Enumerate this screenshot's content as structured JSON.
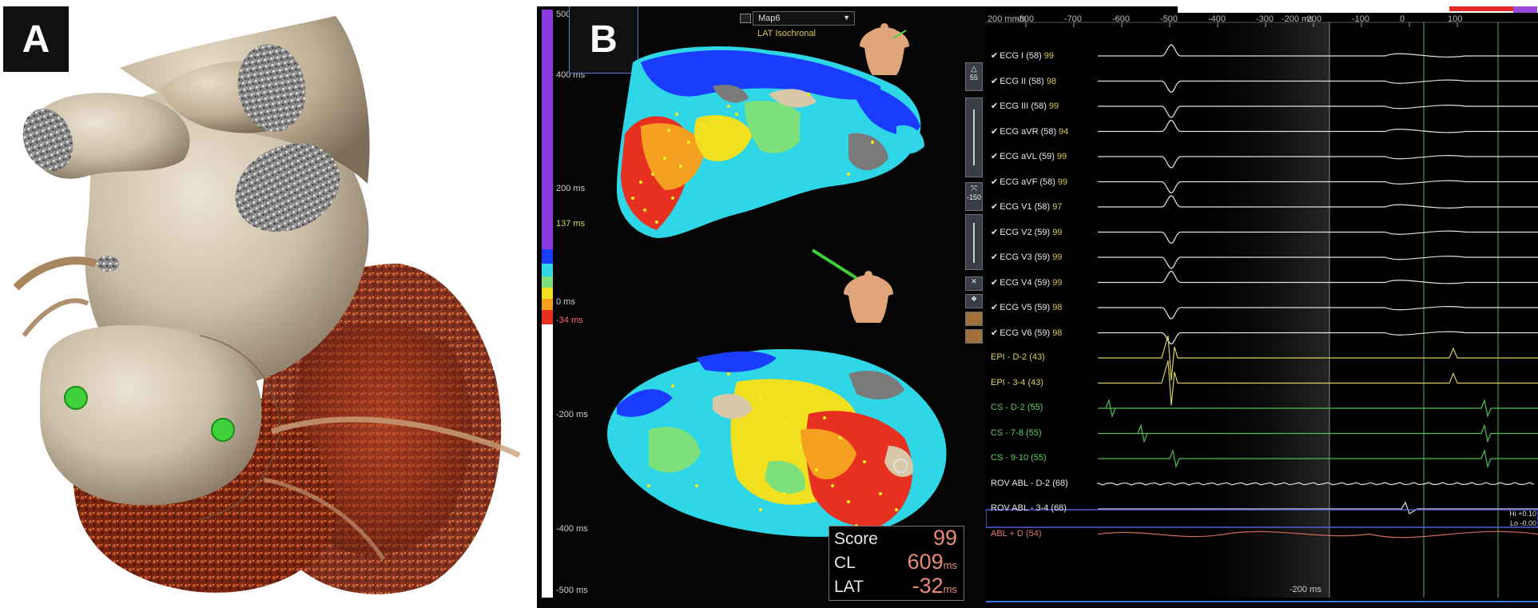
{
  "panels": {
    "a": {
      "label": "A"
    },
    "b": {
      "label": "B"
    }
  },
  "colorbar": {
    "ticks": [
      {
        "label": "500",
        "cls": "",
        "top": 4
      },
      {
        "label": "400 ms",
        "cls": "",
        "top": 80
      },
      {
        "label": "200 ms",
        "cls": "",
        "top": 222
      },
      {
        "label": "137 ms",
        "cls": "y",
        "top": 266
      },
      {
        "label": "0 ms",
        "cls": "",
        "top": 364
      },
      {
        "label": "-34 ms",
        "cls": "r",
        "top": 387
      },
      {
        "label": "-200 ms",
        "cls": "",
        "top": 505
      },
      {
        "label": "-400 ms",
        "cls": "",
        "top": 648
      },
      {
        "label": "-500 ms",
        "cls": "",
        "top": 725
      }
    ],
    "colors": [
      "#8a3adc",
      "#1a3cff",
      "#2ed6e6",
      "#7ee07a",
      "#f0e020",
      "#f5a020",
      "#e83020"
    ]
  },
  "map": {
    "selector_value": "Map6",
    "subtitle": "LAT Isochronal"
  },
  "score_box": {
    "score_label": "Score",
    "score_value": "99",
    "cl_label": "CL",
    "cl_value": "609",
    "cl_unit": "ms",
    "lat_label": "LAT",
    "lat_value": "-32",
    "lat_unit": "ms"
  },
  "toolbar": {
    "zoom_value": "55",
    "rotate_value": "-150"
  },
  "signals": {
    "scale_label": "200 mm/s",
    "time_axis": [
      "-800",
      "-700",
      "-600",
      "-500",
      "-400",
      "-300",
      "-200",
      "-100",
      "0",
      "100"
    ],
    "time_axis_top_right": "-200 ms",
    "bottom_label": "-200 ms",
    "hi_label": "Hi +0.10",
    "lo_label": "Lo -0.00",
    "leads": [
      {
        "name": "ECG I (58)",
        "score": "99",
        "color": "w",
        "check": "✔"
      },
      {
        "name": "ECG II (58)",
        "score": "98",
        "color": "w",
        "check": "✔"
      },
      {
        "name": "ECG III (58)",
        "score": "99",
        "color": "w",
        "check": "✔"
      },
      {
        "name": "ECG aVR (58)",
        "score": "94",
        "color": "w",
        "check": "✔"
      },
      {
        "name": "ECG aVL (59)",
        "score": "99",
        "color": "w",
        "check": "✔"
      },
      {
        "name": "ECG aVF (58)",
        "score": "99",
        "color": "w",
        "check": "✔"
      },
      {
        "name": "ECG V1 (58)",
        "score": "97",
        "color": "w",
        "check": "✔"
      },
      {
        "name": "ECG V2 (59)",
        "score": "99",
        "color": "w",
        "check": "✔"
      },
      {
        "name": "ECG V3 (59)",
        "score": "99",
        "color": "w",
        "check": "✔"
      },
      {
        "name": "ECG V4 (59)",
        "score": "99",
        "color": "w",
        "check": "✔"
      },
      {
        "name": "ECG V5 (59)",
        "score": "98",
        "color": "w",
        "check": "✔"
      },
      {
        "name": "ECG V6 (59)",
        "score": "98",
        "color": "w",
        "check": "✔"
      },
      {
        "name": "EPI - D-2 (43)",
        "score": "",
        "color": "y",
        "check": ""
      },
      {
        "name": "EPI - 3-4 (43)",
        "score": "",
        "color": "y",
        "check": ""
      },
      {
        "name": "CS - D-2 (55)",
        "score": "",
        "color": "g",
        "check": ""
      },
      {
        "name": "CS - 7-8 (55)",
        "score": "",
        "color": "g",
        "check": ""
      },
      {
        "name": "CS - 9-10 (55)",
        "score": "",
        "color": "g",
        "check": ""
      },
      {
        "name": "ROV ABL - D-2 (68)",
        "score": "",
        "color": "w",
        "check": ""
      },
      {
        "name": "ROV ABL - 3-4 (68)",
        "score": "",
        "color": "w",
        "check": ""
      },
      {
        "name": "ABL + D (54)",
        "score": "",
        "color": "r",
        "check": ""
      }
    ]
  }
}
